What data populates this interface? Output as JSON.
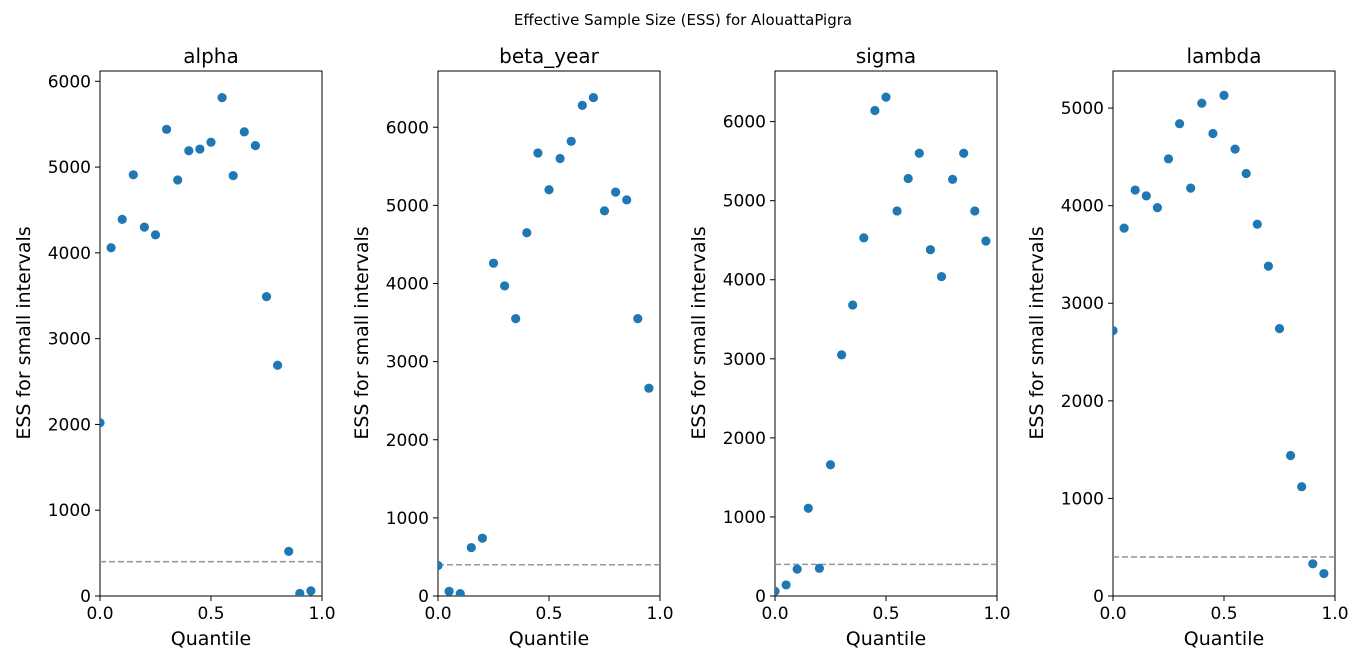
{
  "figure": {
    "suptitle": "Effective Sample Size (ESS) for AlouattaPigra",
    "marker_color": "#1f77b4",
    "reference_line_color": "#999999"
  },
  "chart_data": [
    {
      "type": "scatter",
      "title": "alpha",
      "xlabel": "Quantile",
      "ylabel": "ESS for small intervals",
      "xlim": [
        0,
        1
      ],
      "ylim": [
        0,
        6120
      ],
      "xticks": [
        0.0,
        0.5,
        1.0
      ],
      "xtick_labels": [
        "0.0",
        "0.5",
        "1.0"
      ],
      "yticks": [
        0,
        1000,
        2000,
        3000,
        4000,
        5000,
        6000
      ],
      "ytick_labels": [
        "0",
        "1000",
        "2000",
        "3000",
        "4000",
        "5000",
        "6000"
      ],
      "reference_line": 400,
      "x": [
        0.0,
        0.05,
        0.1,
        0.15,
        0.2,
        0.25,
        0.3,
        0.35,
        0.4,
        0.45,
        0.5,
        0.55,
        0.6,
        0.65,
        0.7,
        0.75,
        0.8,
        0.85,
        0.9,
        0.95
      ],
      "y": [
        2020,
        4060,
        4390,
        4910,
        4300,
        4210,
        5440,
        4850,
        5190,
        5210,
        5290,
        5810,
        4900,
        5410,
        5250,
        3490,
        2690,
        520,
        30,
        60
      ]
    },
    {
      "type": "scatter",
      "title": "beta_year",
      "xlabel": "Quantile",
      "ylabel": "ESS for small intervals",
      "xlim": [
        0,
        1
      ],
      "ylim": [
        0,
        6720
      ],
      "xticks": [
        0.0,
        0.5,
        1.0
      ],
      "xtick_labels": [
        "0.0",
        "0.5",
        "1.0"
      ],
      "yticks": [
        0,
        1000,
        2000,
        3000,
        4000,
        5000,
        6000
      ],
      "ytick_labels": [
        "0",
        "1000",
        "2000",
        "3000",
        "4000",
        "5000",
        "6000"
      ],
      "reference_line": 400,
      "x": [
        0.0,
        0.05,
        0.1,
        0.15,
        0.2,
        0.25,
        0.3,
        0.35,
        0.4,
        0.45,
        0.5,
        0.55,
        0.6,
        0.65,
        0.7,
        0.75,
        0.8,
        0.85,
        0.9,
        0.95
      ],
      "y": [
        390,
        60,
        30,
        620,
        740,
        4260,
        3970,
        3550,
        4650,
        5670,
        5200,
        5600,
        5820,
        6280,
        6380,
        4930,
        5170,
        5070,
        3550,
        2660
      ]
    },
    {
      "type": "scatter",
      "title": "sigma",
      "xlabel": "Quantile",
      "ylabel": "ESS for small intervals",
      "xlim": [
        0,
        1
      ],
      "ylim": [
        0,
        6640
      ],
      "xticks": [
        0.0,
        0.5,
        1.0
      ],
      "xtick_labels": [
        "0.0",
        "0.5",
        "1.0"
      ],
      "yticks": [
        0,
        1000,
        2000,
        3000,
        4000,
        5000,
        6000
      ],
      "ytick_labels": [
        "0",
        "1000",
        "2000",
        "3000",
        "4000",
        "5000",
        "6000"
      ],
      "reference_line": 400,
      "x": [
        0.0,
        0.05,
        0.1,
        0.15,
        0.2,
        0.25,
        0.3,
        0.35,
        0.4,
        0.45,
        0.5,
        0.55,
        0.6,
        0.65,
        0.7,
        0.75,
        0.8,
        0.85,
        0.9,
        0.95
      ],
      "y": [
        60,
        140,
        340,
        1110,
        350,
        1660,
        3050,
        3680,
        4530,
        6140,
        6310,
        4870,
        5280,
        5600,
        4380,
        4040,
        5270,
        5600,
        4870,
        4490
      ]
    },
    {
      "type": "scatter",
      "title": "lambda",
      "xlabel": "Quantile",
      "ylabel": "ESS for small intervals",
      "xlim": [
        0,
        1
      ],
      "ylim": [
        0,
        5380
      ],
      "xticks": [
        0.0,
        0.5,
        1.0
      ],
      "xtick_labels": [
        "0.0",
        "0.5",
        "1.0"
      ],
      "yticks": [
        0,
        1000,
        2000,
        3000,
        4000,
        5000
      ],
      "ytick_labels": [
        "0",
        "1000",
        "2000",
        "3000",
        "4000",
        "5000"
      ],
      "reference_line": 400,
      "x": [
        0.0,
        0.05,
        0.1,
        0.15,
        0.2,
        0.25,
        0.3,
        0.35,
        0.4,
        0.45,
        0.5,
        0.55,
        0.6,
        0.65,
        0.7,
        0.75,
        0.8,
        0.85,
        0.9,
        0.95
      ],
      "y": [
        2720,
        3770,
        4160,
        4100,
        3980,
        4480,
        4840,
        4180,
        5050,
        4740,
        5130,
        4580,
        4330,
        3810,
        3380,
        2740,
        1440,
        1120,
        330,
        230
      ]
    }
  ]
}
